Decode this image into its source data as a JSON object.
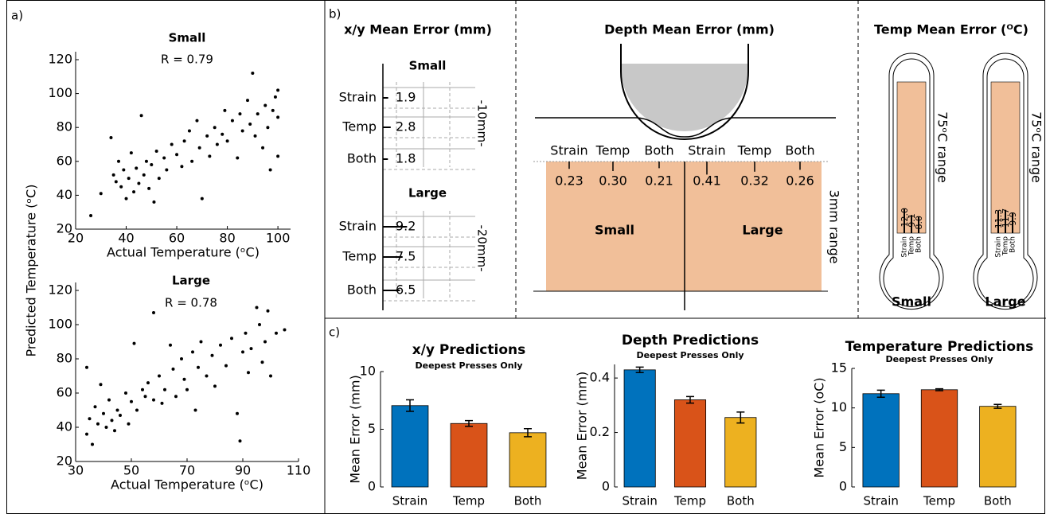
{
  "panel_a": {
    "label": "a)",
    "y_label": "Predicted Temperature (ᵒC)"
  },
  "panel_b": {
    "label": "b)",
    "xy": {
      "title": "x/y Mean Error (mm)",
      "groups": [
        {
          "name": "Small",
          "range": "-10mm-",
          "rows": [
            {
              "label": "Strain",
              "value": 1.9
            },
            {
              "label": "Temp",
              "value": 2.8
            },
            {
              "label": "Both",
              "value": 1.8
            }
          ]
        },
        {
          "name": "Large",
          "range": "-20mm-",
          "rows": [
            {
              "label": "Strain",
              "value": 9.2
            },
            {
              "label": "Temp",
              "value": 7.5
            },
            {
              "label": "Both",
              "value": 6.5
            }
          ]
        }
      ]
    },
    "depth": {
      "title": "Depth Mean Error (mm)",
      "range": "3mm range",
      "groups": [
        {
          "name": "Small",
          "rows": [
            {
              "label": "Strain",
              "value": 0.23
            },
            {
              "label": "Temp",
              "value": 0.3,
              "value_label": "0.30"
            },
            {
              "label": "Both",
              "value": 0.21
            }
          ]
        },
        {
          "name": "Large",
          "rows": [
            {
              "label": "Strain",
              "value": 0.41
            },
            {
              "label": "Temp",
              "value": 0.32
            },
            {
              "label": "Both",
              "value": 0.26
            }
          ]
        }
      ]
    },
    "temp": {
      "title": "Temp Mean Error (ᴼC)",
      "range": "75ᵒC range",
      "groups": [
        {
          "name": "Small",
          "rows": [
            {
              "label": "Strain",
              "value": 12,
              "value_label": "12.0"
            },
            {
              "label": "Temp",
              "value": 9.1
            },
            {
              "label": "Both",
              "value": 8,
              "value_label": "8.0"
            }
          ]
        },
        {
          "name": "Large",
          "rows": [
            {
              "label": "Strain",
              "value": 11.3
            },
            {
              "label": "Temp",
              "value": 11.7
            },
            {
              "label": "Both",
              "value": 9.9
            }
          ]
        }
      ]
    }
  },
  "panel_c": {
    "label": "c)"
  },
  "chart_data": [
    {
      "type": "scatter",
      "title": "Small",
      "annotation": "R = 0.79",
      "x_label": "Actual Temperature (ᵒC)",
      "color": "#000000",
      "x": [
        26,
        30,
        34,
        35,
        36,
        37,
        38,
        39,
        40,
        41,
        42,
        43,
        44,
        45,
        46,
        47,
        48,
        49,
        50,
        51,
        52,
        53,
        55,
        56,
        58,
        60,
        62,
        63,
        65,
        66,
        68,
        69,
        70,
        72,
        73,
        75,
        76,
        78,
        79,
        80,
        82,
        84,
        85,
        86,
        88,
        89,
        90,
        91,
        92,
        94,
        95,
        96,
        97,
        98,
        99,
        100,
        100,
        100
      ],
      "y": [
        28,
        41,
        74,
        52,
        48,
        60,
        45,
        55,
        38,
        50,
        65,
        42,
        56,
        47,
        87,
        52,
        60,
        44,
        58,
        36,
        66,
        50,
        62,
        55,
        70,
        64,
        57,
        72,
        78,
        60,
        84,
        68,
        38,
        75,
        63,
        80,
        70,
        76,
        90,
        72,
        84,
        62,
        88,
        78,
        96,
        82,
        112,
        75,
        88,
        68,
        93,
        80,
        55,
        90,
        98,
        102,
        86,
        63
      ],
      "xlim": [
        20,
        105
      ],
      "xticks": [
        20,
        40,
        60,
        80,
        100
      ],
      "ylim": [
        20,
        120
      ],
      "yticks": [
        20,
        40,
        60,
        80,
        100,
        120
      ]
    },
    {
      "type": "scatter",
      "title": "Large",
      "annotation": "R = 0.78",
      "x_label": "Actual Temperature (ᵒC)",
      "color": "#000000",
      "x": [
        34,
        34,
        35,
        36,
        37,
        38,
        39,
        40,
        41,
        42,
        43,
        44,
        45,
        46,
        48,
        49,
        50,
        51,
        52,
        54,
        55,
        56,
        58,
        58,
        60,
        61,
        62,
        64,
        65,
        66,
        68,
        69,
        70,
        72,
        73,
        74,
        75,
        77,
        79,
        80,
        82,
        84,
        86,
        88,
        89,
        90,
        91,
        92,
        93,
        95,
        96,
        97,
        98,
        99,
        100,
        102,
        105
      ],
      "y": [
        75,
        36,
        45,
        30,
        52,
        42,
        65,
        48,
        40,
        56,
        44,
        38,
        50,
        47,
        60,
        42,
        55,
        89,
        50,
        62,
        58,
        66,
        107,
        56,
        70,
        54,
        62,
        88,
        74,
        58,
        80,
        68,
        62,
        84,
        50,
        75,
        90,
        70,
        82,
        64,
        88,
        76,
        92,
        48,
        32,
        84,
        95,
        72,
        86,
        110,
        100,
        78,
        90,
        108,
        70,
        95,
        97
      ],
      "xlim": [
        30,
        110
      ],
      "xticks": [
        30,
        50,
        70,
        90,
        110
      ],
      "ylim": [
        20,
        120
      ],
      "yticks": [
        20,
        40,
        60,
        80,
        100,
        120
      ]
    },
    {
      "type": "bar",
      "title": "x/y Predictions",
      "subtitle": "Deepest Presses Only",
      "y_label": "Mean Error (mm)",
      "categories": [
        "Strain",
        "Temp",
        "Both"
      ],
      "values": [
        7.05,
        5.5,
        4.7
      ],
      "errors": [
        0.5,
        0.25,
        0.35
      ],
      "colors": [
        "#0072bd",
        "#d95319",
        "#edb120"
      ],
      "ylim": [
        0,
        10
      ],
      "yticks": [
        0,
        5,
        10
      ]
    },
    {
      "type": "bar",
      "title": "Depth Predictions",
      "subtitle": "Deepest Presses Only",
      "y_label": "Mean Error (mm)",
      "categories": [
        "Strain",
        "Temp",
        "Both"
      ],
      "values": [
        0.43,
        0.32,
        0.255
      ],
      "errors": [
        0.01,
        0.012,
        0.02
      ],
      "colors": [
        "#0072bd",
        "#d95319",
        "#edb120"
      ],
      "ylim": [
        0,
        0.45
      ],
      "yticks": [
        0,
        0.2,
        0.4
      ]
    },
    {
      "type": "bar",
      "title": "Temperature Predictions",
      "subtitle": "Deepest Presses Only",
      "y_label": "Mean Error (oC)",
      "categories": [
        "Strain",
        "Temp",
        "Both"
      ],
      "values": [
        11.8,
        12.3,
        10.2
      ],
      "errors": [
        0.45,
        0.12,
        0.25
      ],
      "colors": [
        "#0072bd",
        "#d95319",
        "#edb120"
      ],
      "ylim": [
        0,
        15
      ],
      "yticks": [
        0,
        5,
        10,
        15
      ]
    }
  ]
}
